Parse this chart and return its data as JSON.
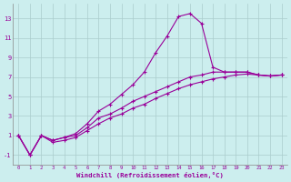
{
  "background_color": "#cceeee",
  "grid_color": "#aacccc",
  "line_color": "#990099",
  "xlim": [
    -0.5,
    23.5
  ],
  "ylim": [
    -2.0,
    14.5
  ],
  "xticks": [
    0,
    1,
    2,
    3,
    4,
    5,
    6,
    7,
    8,
    9,
    10,
    11,
    12,
    13,
    14,
    15,
    16,
    17,
    18,
    19,
    20,
    21,
    22,
    23
  ],
  "yticks": [
    -1,
    1,
    3,
    5,
    7,
    9,
    11,
    13
  ],
  "xlabel": "Windchill (Refroidissement éolien,°C)",
  "line1_x": [
    0,
    1,
    2,
    3,
    4,
    5,
    6,
    7,
    8,
    9,
    10,
    11,
    12,
    13,
    14,
    15,
    16,
    17,
    18,
    19,
    20,
    21,
    22,
    23
  ],
  "line1_y": [
    1.0,
    -1.0,
    1.0,
    0.5,
    0.8,
    1.2,
    2.2,
    3.5,
    4.2,
    5.2,
    6.2,
    7.5,
    9.5,
    11.2,
    13.2,
    13.5,
    12.5,
    8.0,
    7.5,
    7.5,
    7.5,
    7.2,
    7.1,
    7.2
  ],
  "line2_x": [
    0,
    1,
    2,
    3,
    4,
    5,
    6,
    7,
    8,
    9,
    10,
    11,
    12,
    13,
    14,
    15,
    16,
    17,
    18,
    19,
    20,
    21,
    22,
    23
  ],
  "line2_y": [
    1.0,
    -1.0,
    1.0,
    0.5,
    0.8,
    1.0,
    1.8,
    2.8,
    3.2,
    3.8,
    4.5,
    5.0,
    5.5,
    6.0,
    6.5,
    7.0,
    7.2,
    7.5,
    7.5,
    7.5,
    7.5,
    7.2,
    7.1,
    7.2
  ],
  "line3_x": [
    0,
    1,
    2,
    3,
    4,
    5,
    6,
    7,
    8,
    9,
    10,
    11,
    12,
    13,
    14,
    15,
    16,
    17,
    18,
    19,
    20,
    21,
    22,
    23
  ],
  "line3_y": [
    1.0,
    -1.0,
    1.0,
    0.3,
    0.5,
    0.8,
    1.5,
    2.2,
    2.8,
    3.2,
    3.8,
    4.2,
    4.8,
    5.3,
    5.8,
    6.2,
    6.5,
    6.8,
    7.0,
    7.2,
    7.3,
    7.2,
    7.1,
    7.2
  ]
}
